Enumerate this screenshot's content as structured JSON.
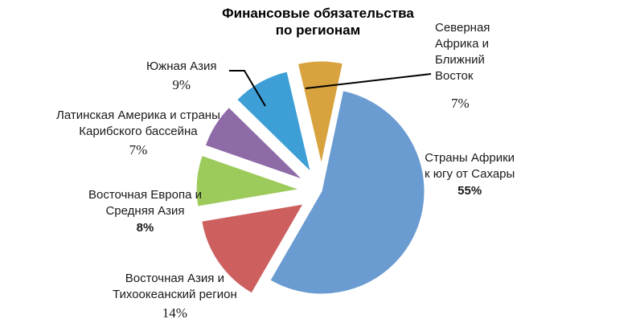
{
  "chart_data": {
    "type": "pie",
    "title": [
      "Финансовые обязательства",
      "по регионам"
    ],
    "slices": [
      {
        "name": [
          "Страны Африки",
          "к югу от Сахары"
        ],
        "value": 55,
        "value_label": "55%",
        "color": "#6a9bd1"
      },
      {
        "name": [
          "Восточная Азия и",
          "Тихоокеанский регион"
        ],
        "value": 14,
        "value_label": "14%",
        "color": "#cd5f5f"
      },
      {
        "name": [
          "Восточная Европа и",
          "Средняя Азия"
        ],
        "value": 8,
        "value_label": "8%",
        "color": "#9dcb5b"
      },
      {
        "name": [
          "Латинская Америка и страны",
          "Карибского бассейна"
        ],
        "value": 7,
        "value_label": "7%",
        "color": "#8e6aa6"
      },
      {
        "name": [
          "Южная Азия"
        ],
        "value": 9,
        "value_label": "9%",
        "color": "#3d9fd6"
      },
      {
        "name": [
          "Северная",
          "Африка и",
          "Ближний",
          "Восток"
        ],
        "value": 7,
        "value_label": "7%",
        "color": "#d8a33e"
      }
    ],
    "legend": "none"
  }
}
